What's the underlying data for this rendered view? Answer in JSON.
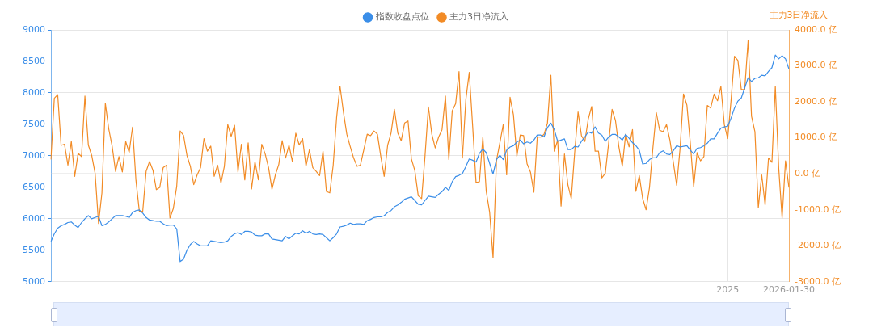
{
  "chart_data": {
    "type": "line",
    "y2label": "主力3日净流入",
    "legend": "top",
    "grid": true,
    "marker": "none",
    "line_style": "solid",
    "categories": [
      null,
      null,
      null,
      null,
      null,
      null,
      null,
      null,
      null,
      null,
      null,
      null,
      null,
      null,
      null,
      null,
      null,
      null,
      null,
      null,
      null,
      null,
      null,
      null,
      null,
      null,
      null,
      null,
      null,
      null,
      null,
      null,
      null,
      null,
      null,
      null,
      null,
      null,
      null,
      null,
      null,
      null,
      null,
      null,
      null,
      null,
      null,
      null,
      null,
      null,
      null,
      null,
      null,
      null,
      null,
      null,
      null,
      null,
      null,
      null,
      null,
      null,
      null,
      null,
      null,
      null,
      null,
      null,
      null,
      null,
      null,
      null,
      null,
      null,
      null,
      null,
      null,
      null,
      null,
      null,
      null,
      null,
      null,
      null,
      null,
      null,
      null,
      null,
      null,
      null,
      null,
      null,
      null,
      null,
      null,
      null,
      null,
      null,
      null,
      null,
      null,
      null,
      null,
      null,
      null,
      null,
      null,
      null,
      null,
      null,
      null,
      null,
      null,
      null,
      null,
      null,
      null,
      null,
      null,
      null,
      null,
      null,
      null,
      null,
      null,
      null,
      null,
      null,
      null,
      null,
      null,
      null,
      null,
      null,
      null,
      null,
      null,
      null,
      null,
      null,
      null,
      null,
      null,
      null,
      null,
      null,
      null,
      null,
      null,
      null,
      null,
      null,
      null,
      null,
      null,
      null,
      null,
      null,
      null,
      null,
      null,
      null,
      null,
      null,
      null,
      null,
      null,
      null,
      null,
      null,
      null,
      null,
      null,
      null,
      null,
      null,
      null,
      null,
      null,
      null,
      null,
      null,
      null,
      null,
      null,
      null,
      null,
      null,
      null,
      null,
      null,
      null,
      null,
      null,
      null,
      null,
      null,
      null,
      null,
      "2025",
      null,
      null,
      null,
      null,
      null,
      null,
      null,
      null,
      null,
      null,
      null,
      null,
      null,
      null,
      null,
      null,
      null,
      "2026-01-30"
    ],
    "ylim": [
      5000,
      9000
    ],
    "yticks": [
      5000,
      5500,
      6000,
      6500,
      7000,
      7500,
      8000,
      8500,
      9000
    ],
    "y2lim": [
      -3000,
      4000
    ],
    "y2ticks": [
      {
        "value": -3000,
        "label": "-3000.0 亿"
      },
      {
        "value": -2000,
        "label": "-2000.0 亿"
      },
      {
        "value": -1000,
        "label": "-1000.0 亿"
      },
      {
        "value": 0,
        "label": "0.0 亿"
      },
      {
        "value": 1000,
        "label": "1000.0 亿"
      },
      {
        "value": 2000,
        "label": "2000.0 亿"
      },
      {
        "value": 3000,
        "label": "3000.0 亿"
      },
      {
        "value": 4000,
        "label": "4000.0 亿"
      }
    ],
    "ref_lines": [
      {
        "axis": "y2",
        "value": 0,
        "color": "#cccccc"
      }
    ],
    "series": [
      {
        "name": "指数收盘点位",
        "color": "#3b8ee8",
        "values": [
          5640,
          5760,
          5850,
          5890,
          5910,
          5940,
          5950,
          5900,
          5860,
          5940,
          6000,
          6050,
          6000,
          6020,
          6040,
          5890,
          5910,
          5950,
          6000,
          6050,
          6050,
          6050,
          6040,
          6020,
          6100,
          6130,
          6140,
          6090,
          6020,
          5980,
          5970,
          5960,
          5960,
          5920,
          5890,
          5900,
          5900,
          5840,
          5320,
          5360,
          5500,
          5590,
          5640,
          5600,
          5570,
          5570,
          5570,
          5650,
          5640,
          5630,
          5620,
          5630,
          5650,
          5720,
          5760,
          5780,
          5750,
          5800,
          5800,
          5790,
          5740,
          5730,
          5730,
          5760,
          5760,
          5680,
          5670,
          5660,
          5650,
          5720,
          5680,
          5730,
          5770,
          5760,
          5810,
          5770,
          5800,
          5760,
          5750,
          5760,
          5750,
          5700,
          5650,
          5700,
          5760,
          5870,
          5880,
          5900,
          5930,
          5910,
          5920,
          5920,
          5910,
          5970,
          5990,
          6020,
          6030,
          6030,
          6050,
          6100,
          6130,
          6190,
          6220,
          6260,
          6310,
          6330,
          6350,
          6290,
          6230,
          6220,
          6290,
          6360,
          6350,
          6340,
          6390,
          6430,
          6500,
          6450,
          6590,
          6670,
          6690,
          6720,
          6830,
          6950,
          6930,
          6900,
          7040,
          7110,
          7050,
          6880,
          6710,
          6940,
          7010,
          6940,
          7090,
          7140,
          7160,
          7220,
          7250,
          7190,
          7220,
          7200,
          7250,
          7330,
          7330,
          7300,
          7450,
          7520,
          7420,
          7230,
          7250,
          7270,
          7100,
          7100,
          7150,
          7140,
          7230,
          7300,
          7380,
          7360,
          7460,
          7360,
          7330,
          7230,
          7300,
          7340,
          7340,
          7300,
          7250,
          7340,
          7280,
          7210,
          7160,
          7090,
          6870,
          6880,
          6940,
          6970,
          6970,
          7050,
          7080,
          7030,
          7020,
          7080,
          7160,
          7140,
          7150,
          7160,
          7090,
          7030,
          7120,
          7130,
          7160,
          7200,
          7270,
          7270,
          7360,
          7440,
          7460,
          7470,
          7600,
          7760,
          7870,
          7920,
          8080,
          8240,
          8180,
          8230,
          8240,
          8280,
          8270,
          8340,
          8400,
          8600,
          8540,
          8590,
          8540,
          8380
        ]
      },
      {
        "name": "主力3日净流入",
        "color": "#f28b25",
        "axis": "y2",
        "values": [
          400,
          2100,
          2200,
          790,
          820,
          240,
          900,
          -70,
          570,
          480,
          2160,
          800,
          510,
          10,
          -1380,
          -530,
          1960,
          1250,
          770,
          70,
          480,
          50,
          900,
          590,
          1300,
          -180,
          -1040,
          -1040,
          70,
          340,
          100,
          -440,
          -380,
          170,
          240,
          -1230,
          -960,
          -340,
          1190,
          1070,
          510,
          210,
          -300,
          -30,
          170,
          980,
          630,
          770,
          -70,
          240,
          -260,
          210,
          1370,
          1040,
          1350,
          50,
          820,
          -170,
          860,
          -420,
          340,
          -170,
          820,
          550,
          170,
          -430,
          -30,
          260,
          920,
          440,
          800,
          340,
          1130,
          800,
          980,
          210,
          670,
          170,
          70,
          -50,
          630,
          -490,
          -530,
          240,
          1560,
          2440,
          1720,
          1100,
          760,
          440,
          210,
          240,
          670,
          1100,
          1060,
          1190,
          1100,
          480,
          -70,
          790,
          1130,
          1790,
          1130,
          920,
          1410,
          1470,
          410,
          90,
          -610,
          -690,
          500,
          1860,
          1100,
          720,
          1020,
          1230,
          2160,
          400,
          1750,
          1950,
          2840,
          440,
          2060,
          2820,
          1330,
          -240,
          -220,
          1020,
          -490,
          -1070,
          -2330,
          360,
          860,
          1370,
          -30,
          2130,
          1640,
          490,
          1080,
          1060,
          280,
          50,
          -510,
          1020,
          1020,
          1100,
          1410,
          2740,
          630,
          940,
          -900,
          550,
          -300,
          -690,
          590,
          1720,
          1060,
          900,
          1520,
          1870,
          630,
          630,
          -110,
          10,
          860,
          1790,
          1480,
          750,
          210,
          1100,
          750,
          1230,
          -490,
          -50,
          -690,
          -1000,
          -380,
          710,
          1700,
          1210,
          1170,
          1370,
          940,
          320,
          -320,
          710,
          2220,
          1910,
          860,
          -360,
          590,
          360,
          480,
          1900,
          1830,
          2220,
          2030,
          2430,
          1370,
          980,
          2060,
          3270,
          3150,
          2340,
          2340,
          3710,
          1600,
          1170,
          -940,
          -30,
          -870,
          440,
          320,
          2430,
          160,
          -1230,
          360,
          -380
        ]
      }
    ]
  }
}
